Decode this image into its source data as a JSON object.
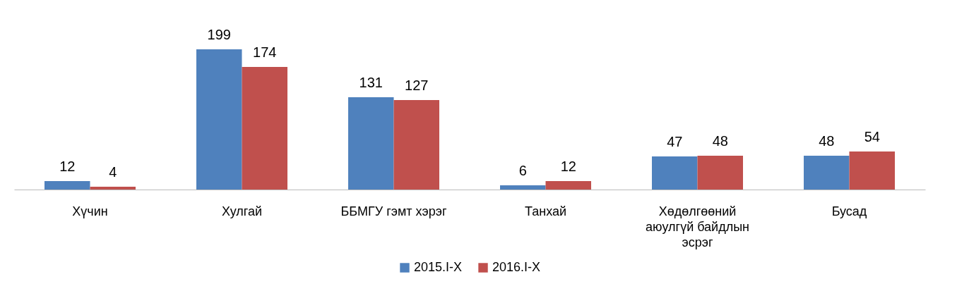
{
  "chart_data": {
    "type": "bar",
    "categories": [
      "Хүчин",
      "Хулгай",
      "ББМГУ гэмт хэрэг",
      "Танхай",
      "Хөдөлгөөний аюулгүй байдлын эсрэг",
      "Бусад"
    ],
    "series": [
      {
        "name": "2015.I-X",
        "color": "#4f81bd",
        "values": [
          12,
          199,
          131,
          6,
          47,
          48
        ]
      },
      {
        "name": "2016.I-X",
        "color": "#c0504d",
        "values": [
          4,
          174,
          127,
          12,
          48,
          54
        ]
      }
    ],
    "data_labels": true,
    "legend": "bottom"
  }
}
